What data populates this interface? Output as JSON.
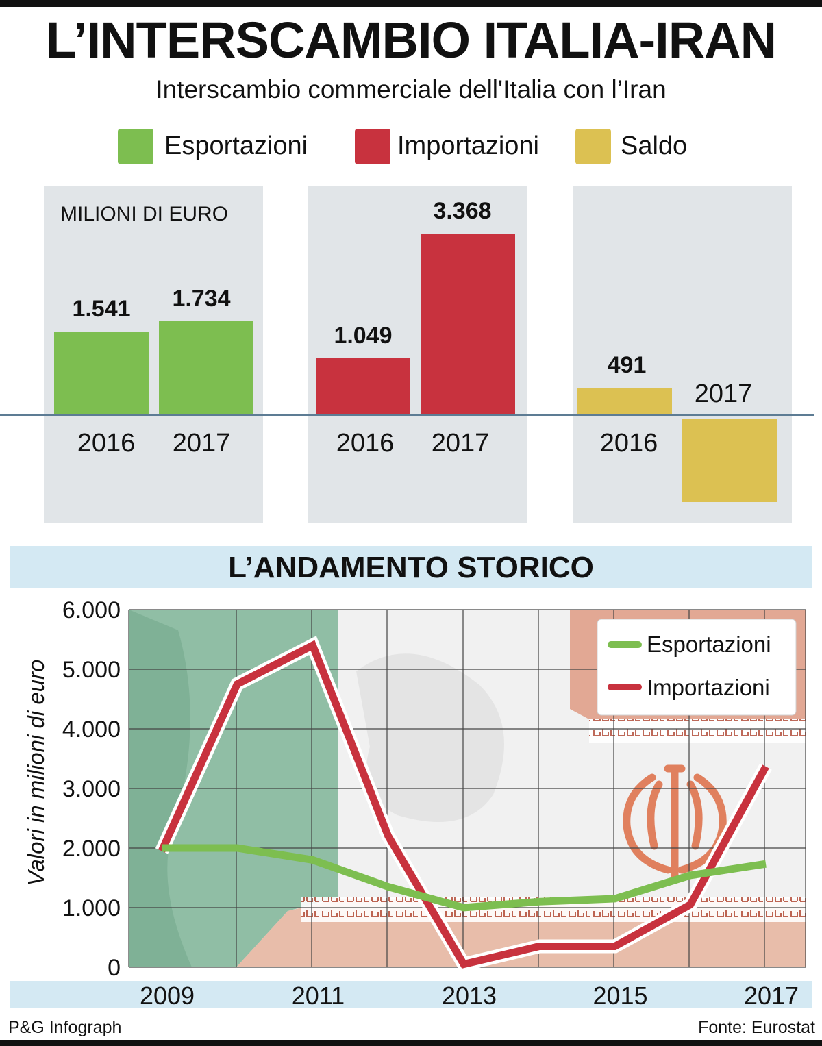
{
  "header": {
    "title": "L’INTERSCAMBIO ITALIA-IRAN",
    "subtitle": "Interscambio commerciale dell'Italia con l’Iran"
  },
  "legend": [
    {
      "label": "Esportazioni",
      "color": "#7dbe50"
    },
    {
      "label": "Importazioni",
      "color": "#c8323e"
    },
    {
      "label": "Saldo",
      "color": "#dcc152"
    }
  ],
  "chart_data": [
    {
      "type": "bar",
      "unit_label": "MILIONI DI EURO",
      "categories": [
        "2016",
        "2017"
      ],
      "series": [
        {
          "name": "Esportazioni",
          "color": "#7dbe50",
          "values": [
            1541,
            1734
          ],
          "labels": [
            "1.541",
            "1.734"
          ]
        },
        {
          "name": "Importazioni",
          "color": "#c8323e",
          "values": [
            1049,
            3368
          ],
          "labels": [
            "1.049",
            "3.368"
          ]
        },
        {
          "name": "Saldo",
          "color": "#dcc152",
          "values": [
            491,
            -1634
          ],
          "labels": [
            "491",
            ""
          ]
        }
      ]
    },
    {
      "type": "line",
      "title": "L’ANDAMENTO STORICO",
      "ylabel": "Valori in milioni di euro",
      "x": [
        2009,
        2010,
        2011,
        2012,
        2013,
        2014,
        2015,
        2016,
        2017
      ],
      "xticks": [
        "2009",
        "2011",
        "2013",
        "2015",
        "2017"
      ],
      "ylim": [
        0,
        6000
      ],
      "yticks": [
        "0",
        "1.000",
        "2.000",
        "3.000",
        "4.000",
        "5.000",
        "6.000"
      ],
      "grid": true,
      "legend_position": "top-right",
      "series": [
        {
          "name": "Esportazioni",
          "color": "#7dbe50",
          "values": [
            2000,
            2000,
            1800,
            1350,
            1000,
            1100,
            1150,
            1541,
            1734
          ]
        },
        {
          "name": "Importazioni",
          "color": "#c8323e",
          "values": [
            1950,
            4750,
            5400,
            2200,
            50,
            350,
            350,
            1049,
            3368
          ]
        }
      ]
    }
  ],
  "footer": {
    "credit": "P&G Infograph",
    "source": "Fonte: Eurostat"
  }
}
